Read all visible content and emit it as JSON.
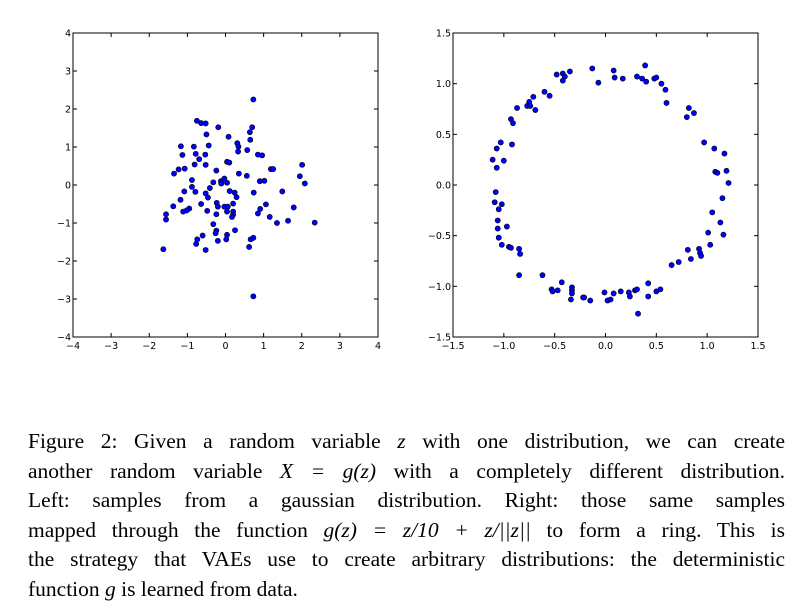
{
  "chart_data": [
    {
      "type": "scatter",
      "xlim": [
        -4,
        4
      ],
      "ylim": [
        -4,
        4
      ],
      "xticks": [
        "−4",
        "−3",
        "−2",
        "−1",
        "0",
        "1",
        "2",
        "3",
        "4"
      ],
      "yticks": [
        "−4",
        "−3",
        "−2",
        "−1",
        "0",
        "1",
        "2",
        "3",
        "4"
      ],
      "xtick_values": [
        -4,
        -3,
        -2,
        -1,
        0,
        1,
        2,
        3,
        4
      ],
      "ytick_values": [
        -4,
        -3,
        -2,
        -1,
        0,
        1,
        2,
        3,
        4
      ],
      "grid": false,
      "marker_color": "#0000ff",
      "points": [
        [
          0.73,
          2.25
        ],
        [
          -0.75,
          1.69
        ],
        [
          -0.64,
          1.63
        ],
        [
          -0.52,
          1.62
        ],
        [
          -0.19,
          1.52
        ],
        [
          0.7,
          1.52
        ],
        [
          0.64,
          1.39
        ],
        [
          -0.5,
          1.33
        ],
        [
          0.08,
          1.27
        ],
        [
          0.65,
          1.19
        ],
        [
          0.31,
          1.1
        ],
        [
          -0.44,
          1.04
        ],
        [
          -1.17,
          1.02
        ],
        [
          -0.83,
          1.01
        ],
        [
          0.34,
          1.01
        ],
        [
          0.57,
          0.92
        ],
        [
          0.33,
          0.88
        ],
        [
          -1.13,
          0.79
        ],
        [
          -0.78,
          0.82
        ],
        [
          -0.53,
          0.8
        ],
        [
          0.85,
          0.8
        ],
        [
          0.96,
          0.78
        ],
        [
          -0.69,
          0.68
        ],
        [
          -0.81,
          0.54
        ],
        [
          -0.52,
          0.53
        ],
        [
          0.04,
          0.61
        ],
        [
          0.1,
          0.59
        ],
        [
          2.01,
          0.53
        ],
        [
          -1.07,
          0.43
        ],
        [
          -1.23,
          0.41
        ],
        [
          -0.24,
          0.38
        ],
        [
          1.19,
          0.42
        ],
        [
          1.25,
          0.42
        ],
        [
          -1.35,
          0.3
        ],
        [
          0.35,
          0.3
        ],
        [
          0.56,
          0.24
        ],
        [
          1.95,
          0.23
        ],
        [
          -0.88,
          0.13
        ],
        [
          -0.32,
          0.07
        ],
        [
          -0.12,
          0.1
        ],
        [
          -0.11,
          0.04
        ],
        [
          -0.03,
          0.17
        ],
        [
          0.04,
          0.06
        ],
        [
          0.9,
          0.1
        ],
        [
          1.02,
          0.11
        ],
        [
          2.08,
          0.04
        ],
        [
          -0.88,
          -0.05
        ],
        [
          -0.41,
          -0.08
        ],
        [
          -1.08,
          -0.17
        ],
        [
          -0.79,
          -0.18
        ],
        [
          0.11,
          -0.16
        ],
        [
          -0.52,
          -0.22
        ],
        [
          0.24,
          -0.2
        ],
        [
          0.74,
          -0.2
        ],
        [
          1.49,
          -0.17
        ],
        [
          -0.46,
          -0.33
        ],
        [
          0.29,
          -0.32
        ],
        [
          -1.18,
          -0.39
        ],
        [
          -0.23,
          -0.47
        ],
        [
          -0.2,
          -0.57
        ],
        [
          0.2,
          -0.49
        ],
        [
          -0.64,
          -0.5
        ],
        [
          1.06,
          -0.51
        ],
        [
          -1.37,
          -0.56
        ],
        [
          -0.03,
          -0.57
        ],
        [
          0.06,
          -0.57
        ],
        [
          1.79,
          -0.59
        ],
        [
          0.91,
          -0.63
        ],
        [
          -0.95,
          -0.62
        ],
        [
          -1.02,
          -0.67
        ],
        [
          -1.11,
          -0.7
        ],
        [
          -0.48,
          -0.68
        ],
        [
          0.04,
          -0.7
        ],
        [
          0.2,
          -0.7
        ],
        [
          0.2,
          -0.78
        ],
        [
          0.17,
          -0.84
        ],
        [
          -1.56,
          -0.77
        ],
        [
          -1.56,
          -0.91
        ],
        [
          -0.24,
          -0.77
        ],
        [
          0.85,
          -0.75
        ],
        [
          1.16,
          -0.84
        ],
        [
          1.35,
          -1.0
        ],
        [
          1.64,
          -0.94
        ],
        [
          2.34,
          -0.99
        ],
        [
          -0.32,
          -1.03
        ],
        [
          -0.24,
          -1.2
        ],
        [
          -0.26,
          -1.27
        ],
        [
          0.25,
          -1.19
        ],
        [
          0.04,
          -1.31
        ],
        [
          -0.6,
          -1.33
        ],
        [
          0.73,
          -1.39
        ],
        [
          0.66,
          -1.43
        ],
        [
          -0.74,
          -1.43
        ],
        [
          -0.77,
          -1.55
        ],
        [
          0.02,
          -1.43
        ],
        [
          -0.2,
          -1.47
        ],
        [
          0.62,
          -1.63
        ],
        [
          -1.63,
          -1.69
        ],
        [
          -0.52,
          -1.71
        ],
        [
          0.73,
          -2.93
        ]
      ]
    },
    {
      "type": "scatter",
      "xlim": [
        -1.5,
        1.5
      ],
      "ylim": [
        -1.5,
        1.5
      ],
      "xticks": [
        "−1.5",
        "−1.0",
        "−0.5",
        "0.0",
        "0.5",
        "1.0",
        "1.5"
      ],
      "yticks": [
        "−1.5",
        "−1.0",
        "−0.5",
        "0.0",
        "0.5",
        "1.0",
        "1.5"
      ],
      "xtick_values": [
        -1.5,
        -1,
        -0.5,
        0,
        0.5,
        1,
        1.5
      ],
      "ytick_values": [
        -1.5,
        -1,
        -0.5,
        0,
        0.5,
        1,
        1.5
      ],
      "grid": false,
      "marker_color": "#0000ff",
      "points": [
        [
          -0.13,
          1.15
        ],
        [
          0.08,
          1.13
        ],
        [
          0.39,
          1.18
        ],
        [
          -0.35,
          1.12
        ],
        [
          -0.48,
          1.09
        ],
        [
          -0.42,
          1.1
        ],
        [
          -0.4,
          1.07
        ],
        [
          -0.42,
          1.03
        ],
        [
          -0.07,
          1.01
        ],
        [
          0.09,
          1.06
        ],
        [
          0.17,
          1.05
        ],
        [
          0.31,
          1.07
        ],
        [
          0.36,
          1.05
        ],
        [
          0.4,
          1.02
        ],
        [
          0.48,
          1.05
        ],
        [
          0.5,
          1.06
        ],
        [
          0.55,
          1.0
        ],
        [
          0.59,
          0.94
        ],
        [
          0.6,
          0.81
        ],
        [
          -0.6,
          0.92
        ],
        [
          -0.55,
          0.88
        ],
        [
          -0.71,
          0.87
        ],
        [
          -0.75,
          0.82
        ],
        [
          -0.77,
          0.78
        ],
        [
          -0.74,
          0.78
        ],
        [
          -0.69,
          0.74
        ],
        [
          -0.87,
          0.76
        ],
        [
          0.82,
          0.76
        ],
        [
          0.8,
          0.67
        ],
        [
          0.87,
          0.71
        ],
        [
          -0.93,
          0.65
        ],
        [
          -0.91,
          0.61
        ],
        [
          -0.92,
          0.4
        ],
        [
          -1.03,
          0.42
        ],
        [
          -1.07,
          0.36
        ],
        [
          -1.11,
          0.25
        ],
        [
          -1.0,
          0.24
        ],
        [
          -1.07,
          0.17
        ],
        [
          0.97,
          0.42
        ],
        [
          1.07,
          0.36
        ],
        [
          1.17,
          0.31
        ],
        [
          1.08,
          0.13
        ],
        [
          1.1,
          0.12
        ],
        [
          1.19,
          0.14
        ],
        [
          1.21,
          0.02
        ],
        [
          -1.08,
          -0.07
        ],
        [
          -1.09,
          -0.17
        ],
        [
          -1.02,
          -0.19
        ],
        [
          -1.05,
          -0.24
        ],
        [
          -1.06,
          -0.35
        ],
        [
          -0.97,
          -0.41
        ],
        [
          -1.06,
          -0.43
        ],
        [
          -1.05,
          -0.52
        ],
        [
          -1.02,
          -0.59
        ],
        [
          -0.95,
          -0.61
        ],
        [
          -0.93,
          -0.62
        ],
        [
          -0.85,
          -0.63
        ],
        [
          -0.84,
          -0.68
        ],
        [
          -0.85,
          -0.89
        ],
        [
          1.15,
          -0.13
        ],
        [
          1.05,
          -0.27
        ],
        [
          1.13,
          -0.37
        ],
        [
          1.16,
          -0.49
        ],
        [
          1.01,
          -0.47
        ],
        [
          1.03,
          -0.59
        ],
        [
          0.81,
          -0.64
        ],
        [
          0.92,
          -0.63
        ],
        [
          0.93,
          -0.67
        ],
        [
          0.94,
          -0.7
        ],
        [
          0.84,
          -0.73
        ],
        [
          0.72,
          -0.76
        ],
        [
          0.65,
          -0.79
        ],
        [
          -0.62,
          -0.89
        ],
        [
          -0.43,
          -0.96
        ],
        [
          0.42,
          -0.97
        ],
        [
          -0.53,
          -1.03
        ],
        [
          -0.52,
          -1.05
        ],
        [
          -0.47,
          -1.04
        ],
        [
          -0.33,
          -1.01
        ],
        [
          -0.33,
          -1.04
        ],
        [
          -0.33,
          -1.07
        ],
        [
          -0.34,
          -1.13
        ],
        [
          -0.22,
          -1.11
        ],
        [
          -0.21,
          -1.11
        ],
        [
          -0.15,
          -1.14
        ],
        [
          -0.01,
          -1.06
        ],
        [
          0.02,
          -1.14
        ],
        [
          0.05,
          -1.13
        ],
        [
          0.08,
          -1.07
        ],
        [
          0.15,
          -1.05
        ],
        [
          0.23,
          -1.06
        ],
        [
          0.24,
          -1.1
        ],
        [
          0.29,
          -1.04
        ],
        [
          0.31,
          -1.03
        ],
        [
          0.42,
          -1.1
        ],
        [
          0.5,
          -1.05
        ],
        [
          0.54,
          -1.03
        ],
        [
          0.32,
          -1.27
        ]
      ]
    }
  ],
  "caption": {
    "lines": [
      [
        "Figure 2: Given a random variable ",
        "z",
        " with one distribution, we can create"
      ],
      [
        "another random variable ",
        "X = g(z)",
        " with a completely different distribution."
      ],
      [
        "Left: samples from a gaussian distribution. Right: those same samples",
        "",
        ""
      ],
      [
        "mapped through the function ",
        "g(z) = z/10 + z/||z||",
        " to form a ring. This is"
      ],
      [
        "the strategy that VAEs use to create arbitrary distributions: the deterministic",
        "",
        ""
      ],
      [
        "function ",
        "g",
        " is learned from data."
      ]
    ]
  }
}
